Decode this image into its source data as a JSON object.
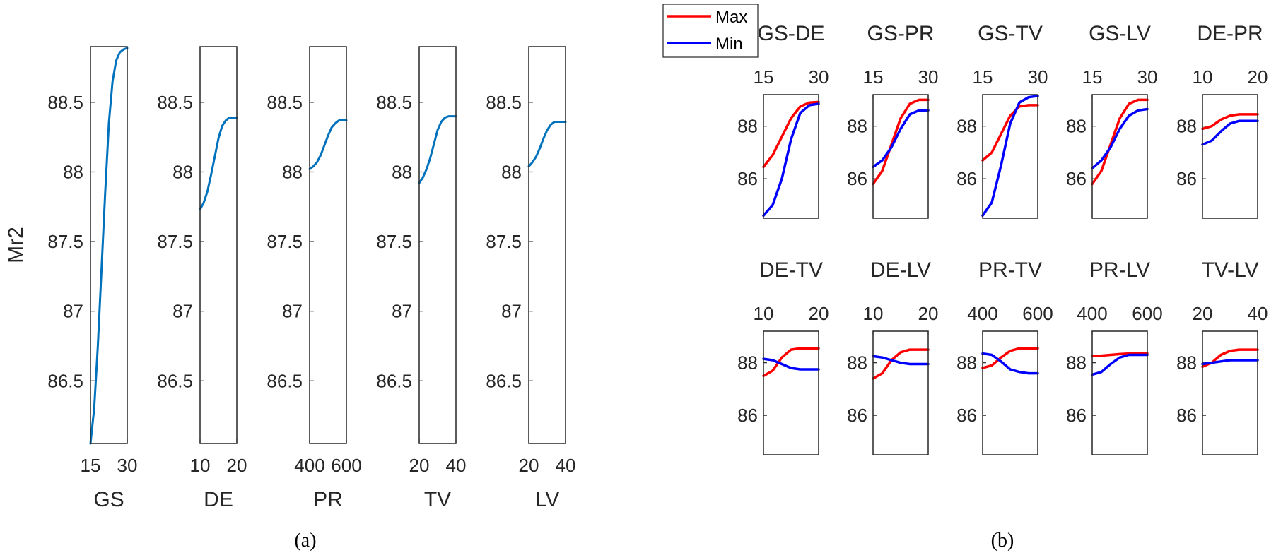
{
  "chart_data": [
    {
      "type": "line",
      "panel": "a",
      "ylabel": "Mr2",
      "ylim": [
        86.05,
        88.9
      ],
      "yticks": [
        "86.5",
        "87",
        "87.5",
        "88",
        "88.5"
      ],
      "line_color": "#0072BD",
      "subplots": [
        {
          "xlabel": "GS",
          "xlim": [
            15,
            30
          ],
          "xticks": [
            "15",
            "30"
          ],
          "series": [
            {
              "name": "Mr2",
              "x": [
                15,
                16.5,
                18,
                19.5,
                21,
                22.5,
                24,
                25.5,
                27,
                28.5,
                30
              ],
              "values": [
                86.05,
                86.3,
                86.75,
                87.3,
                87.85,
                88.35,
                88.65,
                88.8,
                88.86,
                88.88,
                88.89
              ]
            }
          ]
        },
        {
          "xlabel": "DE",
          "xlim": [
            10,
            20
          ],
          "xticks": [
            "10",
            "20"
          ],
          "series": [
            {
              "name": "Mr2",
              "x": [
                10,
                11,
                12,
                13,
                14,
                15,
                16,
                17,
                18,
                19,
                20
              ],
              "values": [
                87.73,
                87.78,
                87.86,
                87.98,
                88.11,
                88.24,
                88.33,
                88.37,
                88.39,
                88.39,
                88.39
              ]
            }
          ]
        },
        {
          "xlabel": "PR",
          "xlim": [
            400,
            600
          ],
          "xticks": [
            "400",
            "600"
          ],
          "series": [
            {
              "name": "Mr2",
              "x": [
                400,
                420,
                440,
                460,
                480,
                500,
                520,
                540,
                560,
                580,
                600
              ],
              "values": [
                88.02,
                88.04,
                88.07,
                88.12,
                88.19,
                88.26,
                88.32,
                88.35,
                88.37,
                88.37,
                88.37
              ]
            }
          ]
        },
        {
          "xlabel": "TV",
          "xlim": [
            20,
            40
          ],
          "xticks": [
            "20",
            "40"
          ],
          "series": [
            {
              "name": "Mr2",
              "x": [
                20,
                22,
                24,
                26,
                28,
                30,
                32,
                34,
                36,
                38,
                40
              ],
              "values": [
                87.92,
                87.96,
                88.02,
                88.1,
                88.2,
                88.3,
                88.36,
                88.39,
                88.4,
                88.4,
                88.4
              ]
            }
          ]
        },
        {
          "xlabel": "LV",
          "xlim": [
            20,
            40
          ],
          "xticks": [
            "20",
            "40"
          ],
          "series": [
            {
              "name": "Mr2",
              "x": [
                20,
                22,
                24,
                26,
                28,
                30,
                32,
                34,
                36,
                38,
                40
              ],
              "values": [
                88.04,
                88.07,
                88.11,
                88.17,
                88.24,
                88.3,
                88.34,
                88.36,
                88.36,
                88.36,
                88.36
              ]
            }
          ]
        }
      ]
    },
    {
      "type": "line",
      "panel": "b",
      "ylim": [
        84.5,
        89.2
      ],
      "yticks": [
        "86",
        "88"
      ],
      "legend": [
        {
          "name": "Max",
          "color": "#FF0000"
        },
        {
          "name": "Min",
          "color": "#0000FF"
        }
      ],
      "subplots": [
        {
          "title": "GS-DE",
          "xlim": [
            15,
            30
          ],
          "xticks": [
            "15",
            "30"
          ],
          "series": [
            {
              "name": "Max",
              "values": [
                86.45,
                86.9,
                87.6,
                88.3,
                88.75,
                88.9,
                88.92
              ]
            },
            {
              "name": "Min",
              "values": [
                84.6,
                85.0,
                86.0,
                87.5,
                88.5,
                88.8,
                88.85
              ]
            }
          ]
        },
        {
          "title": "GS-PR",
          "xlim": [
            15,
            30
          ],
          "xticks": [
            "15",
            "30"
          ],
          "series": [
            {
              "name": "Max",
              "values": [
                85.8,
                86.3,
                87.3,
                88.3,
                88.85,
                89.0,
                89.0
              ]
            },
            {
              "name": "Min",
              "values": [
                86.45,
                86.7,
                87.2,
                87.9,
                88.45,
                88.6,
                88.6
              ]
            }
          ]
        },
        {
          "title": "GS-TV",
          "xlim": [
            15,
            30
          ],
          "xticks": [
            "15",
            "30"
          ],
          "series": [
            {
              "name": "Max",
              "values": [
                86.7,
                87.0,
                87.7,
                88.4,
                88.75,
                88.8,
                88.8
              ]
            },
            {
              "name": "Min",
              "values": [
                84.6,
                85.1,
                86.5,
                88.1,
                88.9,
                89.1,
                89.15
              ]
            }
          ]
        },
        {
          "title": "GS-LV",
          "xlim": [
            15,
            30
          ],
          "xticks": [
            "15",
            "30"
          ],
          "series": [
            {
              "name": "Max",
              "values": [
                85.8,
                86.3,
                87.3,
                88.3,
                88.85,
                89.0,
                89.0
              ]
            },
            {
              "name": "Min",
              "values": [
                86.4,
                86.7,
                87.2,
                87.9,
                88.4,
                88.6,
                88.65
              ]
            }
          ]
        },
        {
          "title": "DE-PR",
          "xlim": [
            10,
            20
          ],
          "xticks": [
            "10",
            "20"
          ],
          "series": [
            {
              "name": "Max",
              "values": [
                87.9,
                88.0,
                88.25,
                88.4,
                88.45,
                88.45,
                88.45
              ]
            },
            {
              "name": "Min",
              "values": [
                87.3,
                87.45,
                87.8,
                88.1,
                88.2,
                88.2,
                88.2
              ]
            }
          ]
        },
        {
          "title": "DE-TV",
          "xlim": [
            10,
            20
          ],
          "xticks": [
            "10",
            "20"
          ],
          "series": [
            {
              "name": "Max",
              "values": [
                87.5,
                87.7,
                88.2,
                88.5,
                88.55,
                88.55,
                88.55
              ]
            },
            {
              "name": "Min",
              "values": [
                88.15,
                88.1,
                87.95,
                87.8,
                87.75,
                87.75,
                87.75
              ]
            }
          ]
        },
        {
          "title": "DE-LV",
          "xlim": [
            10,
            20
          ],
          "xticks": [
            "10",
            "20"
          ],
          "series": [
            {
              "name": "Max",
              "values": [
                87.4,
                87.6,
                88.1,
                88.4,
                88.5,
                88.5,
                88.5
              ]
            },
            {
              "name": "Min",
              "values": [
                88.25,
                88.2,
                88.1,
                88.0,
                87.95,
                87.95,
                87.95
              ]
            }
          ]
        },
        {
          "title": "PR-TV",
          "xlim": [
            400,
            600
          ],
          "xticks": [
            "400",
            "600"
          ],
          "series": [
            {
              "name": "Max",
              "values": [
                87.8,
                87.9,
                88.2,
                88.45,
                88.55,
                88.55,
                88.55
              ]
            },
            {
              "name": "Min",
              "values": [
                88.35,
                88.3,
                88.05,
                87.75,
                87.65,
                87.6,
                87.6
              ]
            }
          ]
        },
        {
          "title": "PR-LV",
          "xlim": [
            400,
            600
          ],
          "xticks": [
            "400",
            "600"
          ],
          "series": [
            {
              "name": "Max",
              "values": [
                88.25,
                88.27,
                88.3,
                88.33,
                88.35,
                88.35,
                88.35
              ]
            },
            {
              "name": "Min",
              "values": [
                87.55,
                87.65,
                87.95,
                88.2,
                88.3,
                88.3,
                88.3
              ]
            }
          ]
        },
        {
          "title": "TV-LV",
          "xlim": [
            20,
            40
          ],
          "xticks": [
            "20",
            "40"
          ],
          "series": [
            {
              "name": "Max",
              "values": [
                87.85,
                88.0,
                88.3,
                88.45,
                88.5,
                88.5,
                88.5
              ]
            },
            {
              "name": "Min",
              "values": [
                87.95,
                88.0,
                88.05,
                88.1,
                88.1,
                88.1,
                88.1
              ]
            }
          ]
        }
      ]
    }
  ],
  "captions": {
    "a": "(a)",
    "b": "(b)"
  }
}
